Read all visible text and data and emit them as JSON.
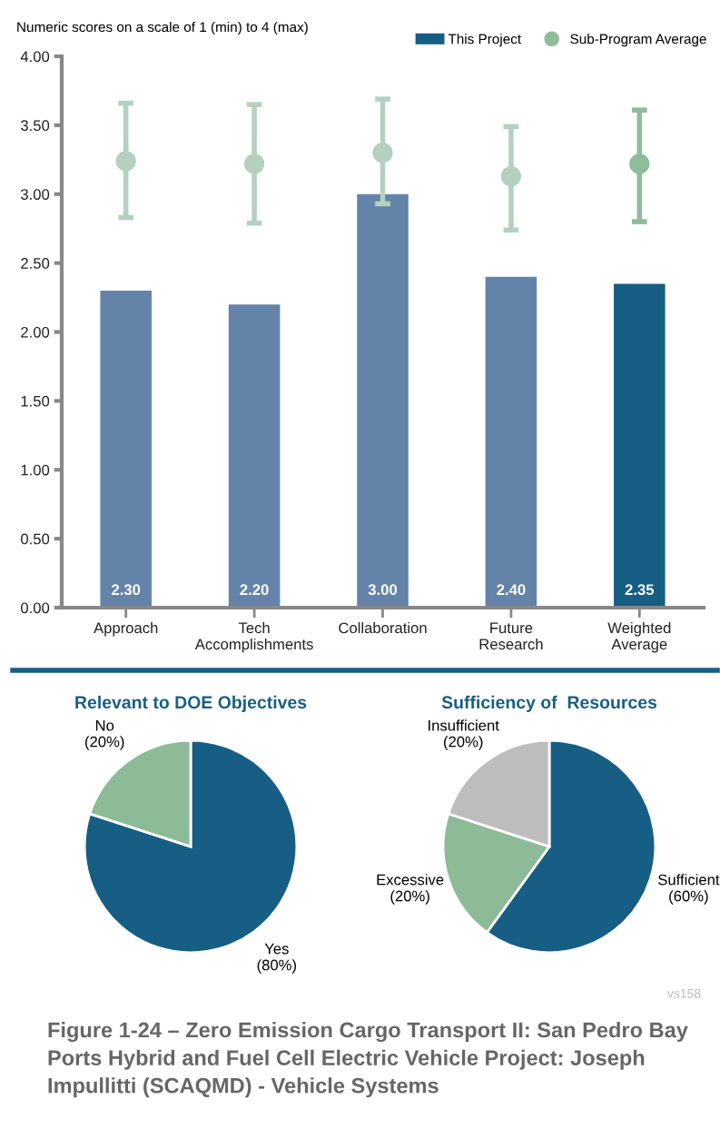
{
  "chart_data": [
    {
      "type": "bar",
      "subtitle": "Numeric scores on a scale of 1 (min) to 4 (max)",
      "categories": [
        "Approach",
        "Tech\nAccomplishments",
        "Collaboration",
        "Future\nResearch",
        "Weighted\nAverage"
      ],
      "series": [
        {
          "name": "This Project",
          "type": "bar",
          "color": "#175e85",
          "colors": [
            "#6483a9",
            "#6483a9",
            "#6483a9",
            "#6483a9",
            "#175e85"
          ],
          "values": [
            2.3,
            2.2,
            3.0,
            2.4,
            2.35
          ],
          "value_labels": [
            "2.30",
            "2.20",
            "3.00",
            "2.40",
            "2.35"
          ]
        },
        {
          "name": "Sub-Program Average",
          "type": "scatter",
          "color": "#8dbd99",
          "colors": [
            "#b3d1be",
            "#b3d1be",
            "#b3d1be",
            "#b3d1be",
            "#8dbd99"
          ],
          "x": [
            "Approach",
            "Tech\nAccomplishments",
            "Collaboration",
            "Future\nResearch",
            "Weighted\nAverage"
          ],
          "values": [
            3.24,
            3.22,
            3.3,
            3.13,
            3.22
          ],
          "errors": [
            [
              2.83,
              3.66
            ],
            [
              2.79,
              3.65
            ],
            [
              2.93,
              3.69
            ],
            [
              2.74,
              3.49
            ],
            [
              2.8,
              3.61
            ]
          ]
        }
      ],
      "ylim": [
        0,
        4
      ],
      "yticks": [
        {
          "value": 0,
          "label": "0.00"
        },
        {
          "value": 0.5,
          "label": "0.50"
        },
        {
          "value": 1,
          "label": "1.00"
        },
        {
          "value": 1.5,
          "label": "1.50"
        },
        {
          "value": 2,
          "label": "2.00"
        },
        {
          "value": 2.5,
          "label": "2.50"
        },
        {
          "value": 3,
          "label": "3.00"
        },
        {
          "value": 3.5,
          "label": "3.50"
        },
        {
          "value": 4,
          "label": "4.00"
        }
      ],
      "legend": "top right",
      "grid": false,
      "marker": "circle"
    },
    {
      "type": "pie",
      "title": "Relevant to DOE Objectives",
      "categories": [
        "Yes",
        "No"
      ],
      "values": [
        80,
        20
      ],
      "colors": [
        "#175e85",
        "#8dbb98"
      ],
      "value_labels": [
        "(80%)",
        "(20%)"
      ]
    },
    {
      "type": "pie",
      "title": "Sufficiency of  Resources",
      "categories": [
        "Sufficient",
        "Excessive",
        "Insufficient"
      ],
      "values": [
        60,
        20,
        20
      ],
      "colors": [
        "#175e85",
        "#8dbb98",
        "#bdbdbd"
      ],
      "value_labels": [
        "(60%)",
        "(20%)",
        "(20%)"
      ],
      "annotations": [
        "vs158",
        "Figure 1-24 – Zero Emission Cargo Transport II: San Pedro Bay Ports Hybrid and Fuel Cell Electric Vehicle Project: Joseph Impullitti (SCAQMD) - Vehicle Systems"
      ]
    }
  ]
}
